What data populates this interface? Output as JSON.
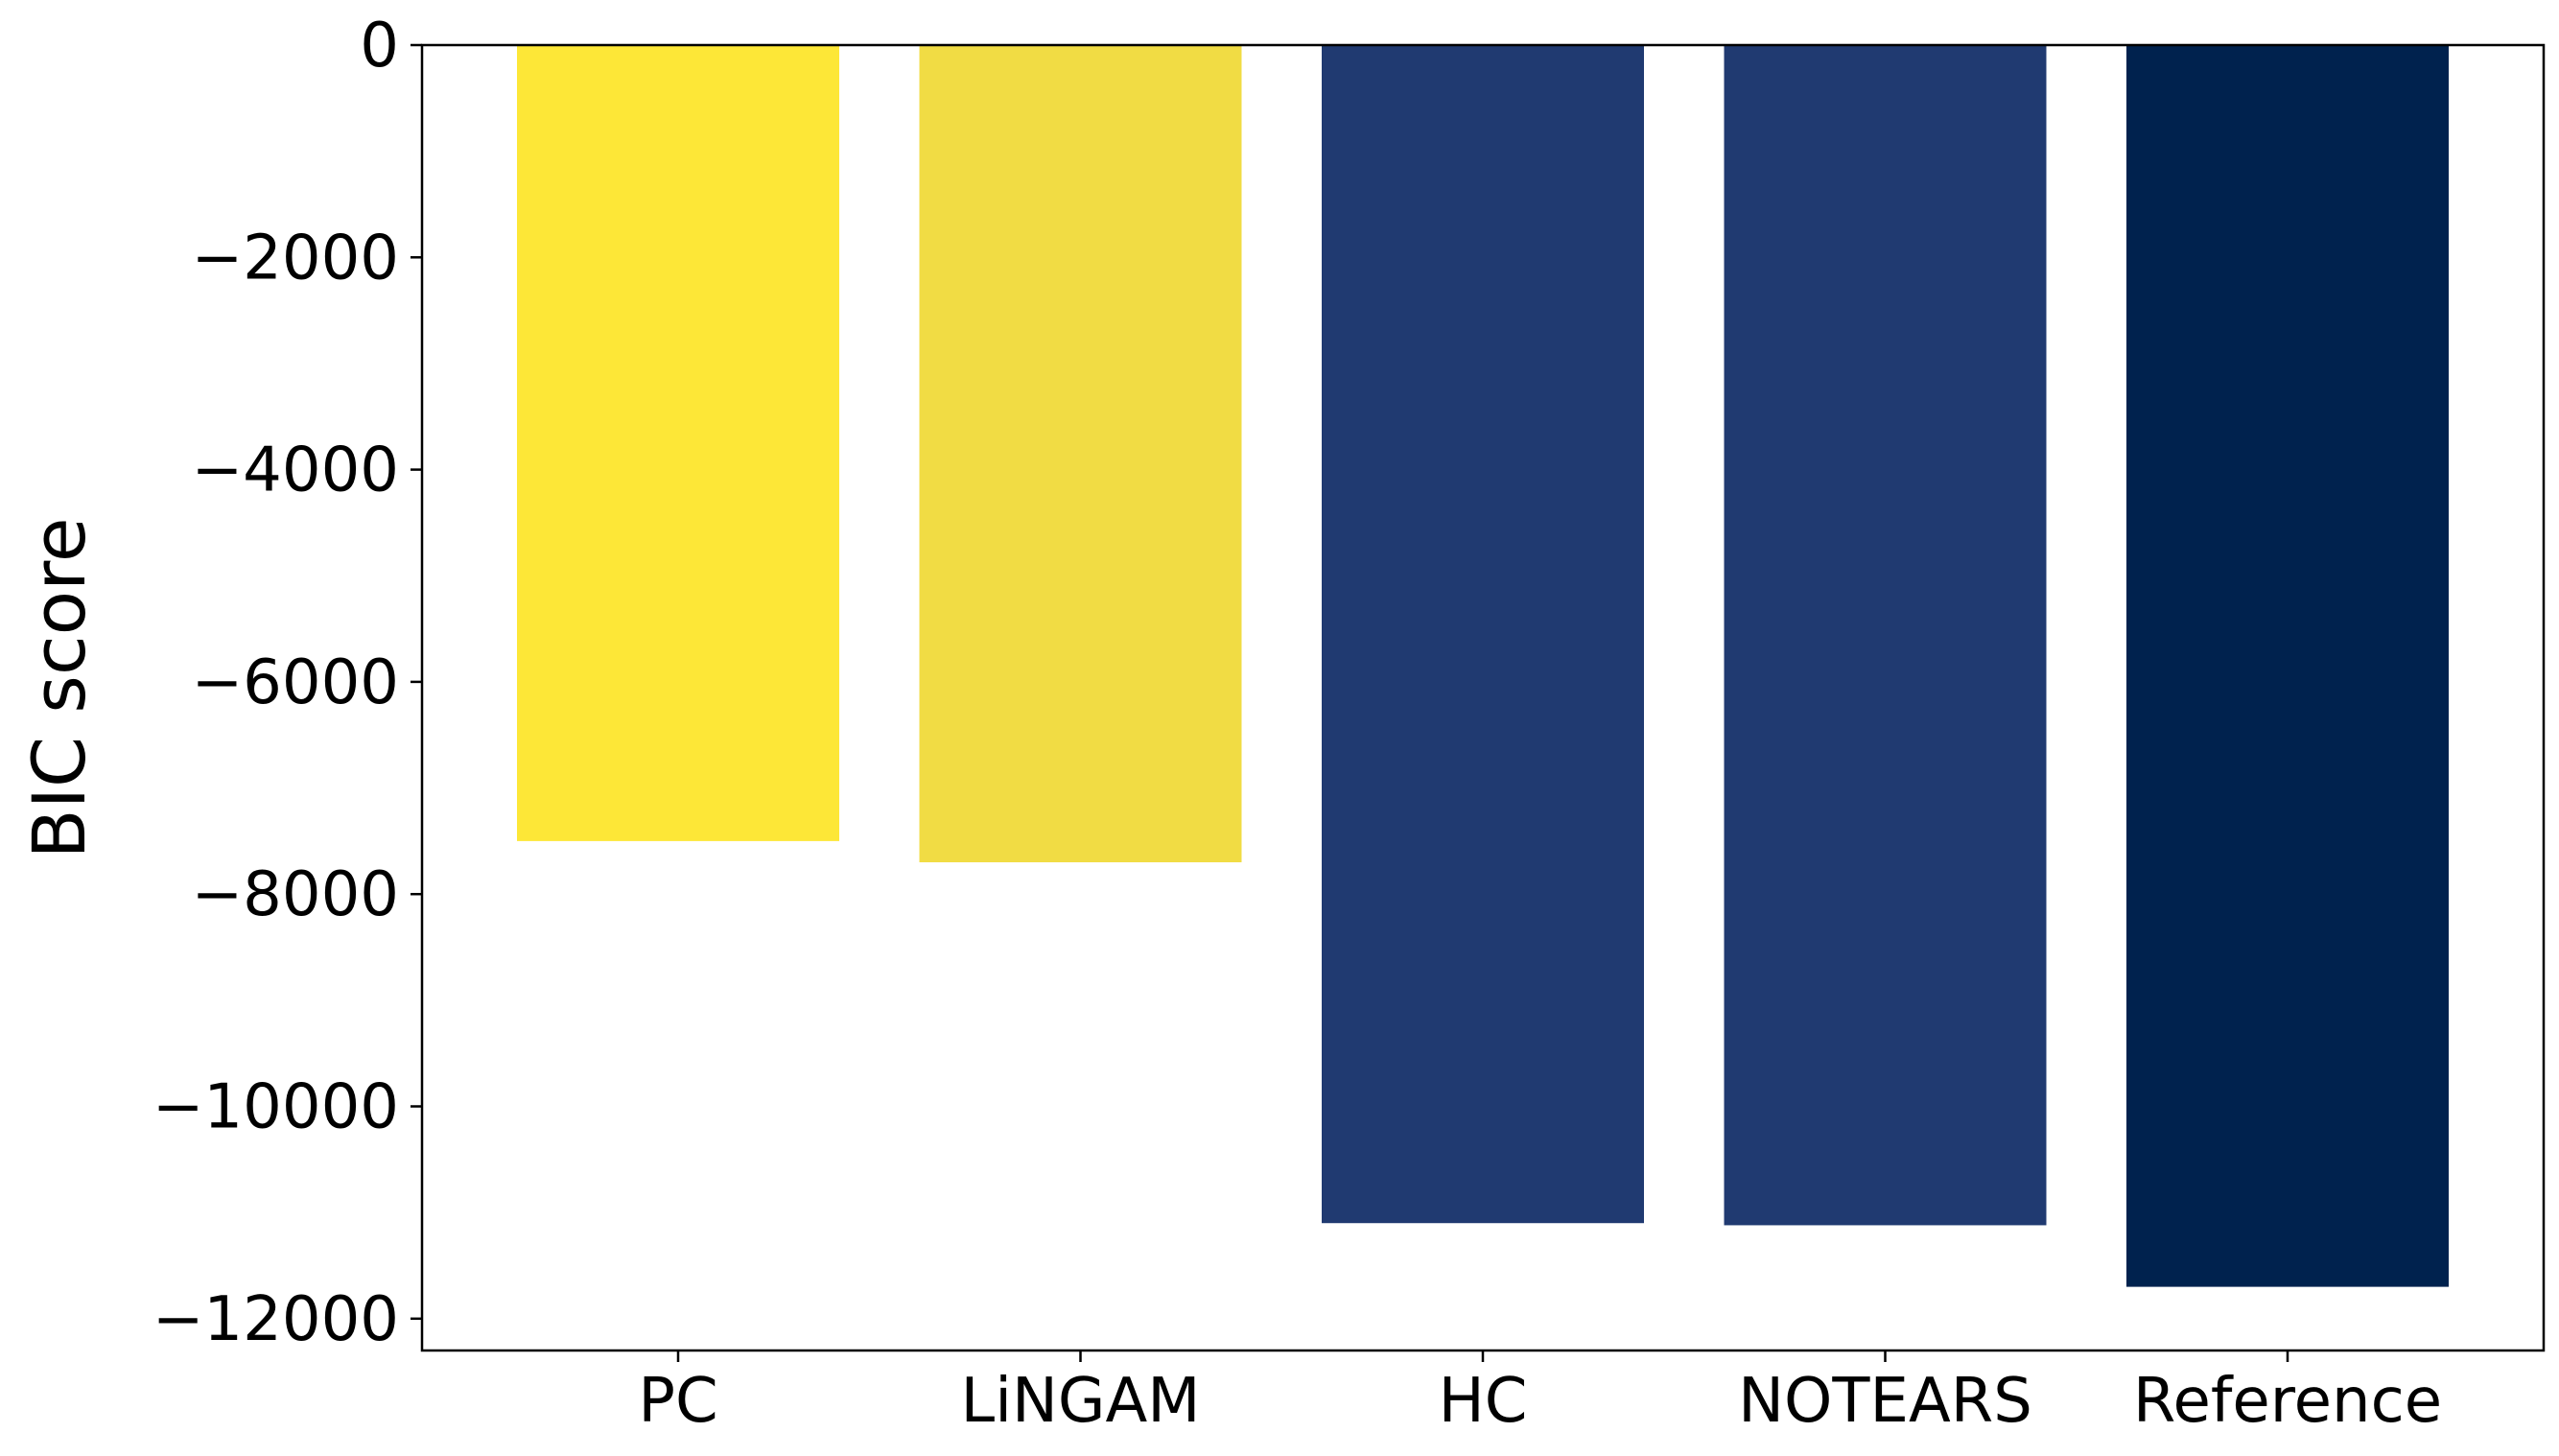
{
  "chart_data": {
    "type": "bar",
    "title": "",
    "xlabel": "",
    "ylabel": "BIC score",
    "categories": [
      "PC",
      "LiNGAM",
      "HC",
      "NOTEARS",
      "Reference"
    ],
    "values": [
      -7500,
      -7700,
      -11100,
      -11120,
      -11700
    ],
    "colors": [
      "#fde737",
      "#f1dc44",
      "#203a71",
      "#203a71",
      "#00224e"
    ],
    "ylim": [
      -12300,
      0
    ],
    "yticks": [
      0,
      -2000,
      -4000,
      -6000,
      -8000,
      -10000,
      -12000
    ],
    "ytick_labels": [
      "0",
      "−2000",
      "−4000",
      "−6000",
      "−8000",
      "−10000",
      "−12000"
    ],
    "grid": false,
    "legend": "none"
  }
}
